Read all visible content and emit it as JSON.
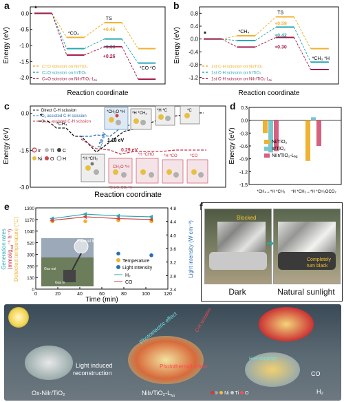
{
  "colors": {
    "ni": "#f0b232",
    "ir": "#2aa8b4",
    "niir": "#a61e4d",
    "black": "#111111"
  },
  "panels": {
    "a": "a",
    "b": "b",
    "c": "c",
    "d": "d",
    "e": "e",
    "f": "f",
    "g": "g"
  },
  "chart_data": [
    {
      "id": "a",
      "type": "line",
      "xlabel": "Reaction coordinate",
      "ylabel": "Energy (eV)",
      "ylim": [
        -2.2,
        0.2
      ],
      "yticks": [
        "0.0",
        "-0.5",
        "-1.0",
        "-1.5",
        "-2.0"
      ],
      "state_labels": [
        "*",
        "*CO₂",
        "TS",
        "*CO *O"
      ],
      "series": [
        {
          "name": "C=O scission on Ni/TiO₂",
          "color": "#f0b232",
          "values": [
            0,
            -0.75,
            -0.29,
            -1.1
          ]
        },
        {
          "name": "C=O scission on Ir/TiO₂",
          "color": "#2aa8b4",
          "values": [
            0,
            -1.1,
            -0.8,
            -1.55
          ]
        },
        {
          "name": "C=O scission on NiIr/TiO₂-L",
          "name_sub": "Ni",
          "color": "#a61e4d",
          "values": [
            0,
            -1.3,
            -1.04,
            -2.05
          ]
        }
      ],
      "annotations": [
        "+0.46",
        "+0.30",
        "+0.26"
      ]
    },
    {
      "id": "b",
      "type": "line",
      "xlabel": "Reaction coordinate",
      "ylabel": "Energy (eV)",
      "ylim": [
        -1.4,
        1.0
      ],
      "yticks": [
        "0.8",
        "0.4",
        "0.0",
        "-0.4",
        "-0.8",
        "-1.2"
      ],
      "state_labels": [
        "*",
        "*CH₄",
        "TS",
        "*CH₃ *H"
      ],
      "series": [
        {
          "name": "1st C-H scission on Ni/TiO₂",
          "color": "#f0b232",
          "values": [
            0,
            0.1,
            0.69,
            -0.3
          ]
        },
        {
          "name": "1st C-H scission on Ir/TiO₂",
          "color": "#2aa8b4",
          "values": [
            0,
            -0.05,
            0.37,
            -0.72
          ]
        },
        {
          "name": "1st C-H scission on NiIr/TiO₂-L",
          "name_sub": "Ni",
          "color": "#a61e4d",
          "values": [
            0,
            -0.25,
            0.05,
            -0.95
          ]
        }
      ],
      "annotations": [
        "+0.59",
        "+0.42",
        "+0.30"
      ]
    },
    {
      "id": "c",
      "type": "line",
      "xlabel": "Reaction coordinate",
      "ylabel": "Energy (eV)",
      "ylim": [
        -3.0,
        0.3
      ],
      "yticks": [
        "0.0",
        "-1.5",
        "-3.0"
      ],
      "series": [
        {
          "name": "Direct C-H scission",
          "color": "#111111"
        },
        {
          "name": "O",
          "name_sub": "s",
          "name_suffix": " assisted C-H scission",
          "color": "#2a6fb5"
        },
        {
          "name": "O",
          "name_sub": "CO2",
          "name_suffix": " assisted C-H scission",
          "color": "#c8324a"
        }
      ],
      "state_labels": [
        "*",
        "*CH₄",
        "*CH₂O *H",
        "*H *CH₂",
        "*H *C",
        "*C",
        "*H *CH₃",
        "*H *CHO",
        "*H *CO",
        "*CO",
        "*CH₂O_CO₂ *H",
        "CH₂O *H"
      ],
      "annotations": [
        "1.39 eV",
        "1.18 eV",
        "0.29 eV"
      ],
      "elements": [
        "Ir",
        "Ti",
        "C",
        "Ni",
        "O",
        "H"
      ]
    },
    {
      "id": "d",
      "type": "bar",
      "ylabel": "Energy (eV)",
      "ylim": [
        -1.5,
        0.3
      ],
      "yticks": [
        "0.3",
        "0.0",
        "-0.3",
        "-0.6",
        "-0.9",
        "-1.2",
        "-1.5"
      ],
      "categories": [
        "*CH₄→*H *CH₃",
        "*H *CH₃→*H *CH₃OCO₂"
      ],
      "series": [
        {
          "name": "Ni/TiO₂",
          "color": "#f0b232",
          "values": [
            -0.3,
            -0.95
          ]
        },
        {
          "name": "Ir/TiO₂",
          "color": "#79c8cf",
          "values": [
            -0.75,
            0.07
          ]
        },
        {
          "name": "NiIr/TiO₂-L",
          "name_sub": "Ni",
          "color": "#d6607f",
          "values": [
            -0.72,
            -0.6
          ]
        }
      ]
    },
    {
      "id": "e",
      "type": "line",
      "xlabel": "Time (min)",
      "ylabel_left_1": "Generation rates",
      "ylabel_left_2": "(mmol/g",
      "ylabel_left_sub": "cat",
      "ylabel_left_3": "⁻¹ h⁻¹)",
      "ylabel_left_4": "Detected temperature (°C)",
      "ylabel_right": "Light intensity (W cm⁻²)",
      "xticks": [
        "0",
        "20",
        "40",
        "60",
        "80",
        "100",
        "120"
      ],
      "xlim": [
        0,
        120
      ],
      "yticks_left": [
        "0",
        "130",
        "260",
        "390",
        "520",
        "1040",
        "1170",
        "1300"
      ],
      "yticks_right": [
        "2.4",
        "2.8",
        "3.2",
        "3.6",
        "4.0",
        "4.4",
        "4.8"
      ],
      "ylim_right": [
        2.4,
        4.8
      ],
      "x": [
        15,
        45,
        75,
        105
      ],
      "series": [
        {
          "name": "Temperature",
          "color": "#f0b232",
          "values": [
            1150,
            1150,
            1160,
            1150
          ]
        },
        {
          "name": "Light Intensity",
          "color": "#2a6fb5",
          "values": [
            3.6,
            3.5,
            3.45,
            3.4
          ]
        },
        {
          "name": "H₂",
          "color": "#2aa8b4",
          "values": [
            1180,
            1230,
            1210,
            1200
          ]
        },
        {
          "name": "CO",
          "color": "#d04545",
          "values": [
            1160,
            1200,
            1180,
            1170
          ]
        }
      ],
      "inset_labels": [
        "Fresnel lens",
        "Gas out",
        "Gas in"
      ]
    }
  ],
  "panel_f": {
    "left_caption": "Dark",
    "right_caption": "Natural sunlight",
    "blocked_label": "Blocked",
    "black_label_1": "Completely",
    "black_label_2": "turn black"
  },
  "panel_g": {
    "label_left": "Ox-NiIr/TiO₂",
    "label_mid_1": "NiIr/TiO₂-L",
    "label_mid_sub": "Ni",
    "arrow_text_1": "Light induced",
    "arrow_text_2": "reconstruction",
    "photoelectric": "Photoelectric effect",
    "photothermal": "Photothermal effect",
    "ch_scission": "C-H scission",
    "hh_coupling": "H-H coupling",
    "legend": [
      "Ir",
      "Ni",
      "Ti",
      "O"
    ],
    "products": [
      "CO",
      "H₂"
    ]
  }
}
